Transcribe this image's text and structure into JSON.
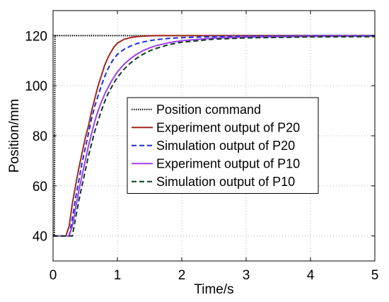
{
  "chart_data": {
    "type": "line",
    "xlabel": "Time/s",
    "ylabel": "Position/mm",
    "xlim": [
      0,
      5
    ],
    "ylim": [
      30,
      130
    ],
    "xticks": [
      0,
      1,
      2,
      3,
      4,
      5
    ],
    "yticks": [
      40,
      60,
      80,
      100,
      120
    ],
    "grid": true,
    "legend_position": "center",
    "series": [
      {
        "name": "Position command",
        "color": "#000000",
        "style": "dotted",
        "x": [
          0,
          0.02,
          0.03,
          5
        ],
        "y": [
          40,
          40,
          120,
          120
        ]
      },
      {
        "name": "Experiment output of P20",
        "color": "#a0281e",
        "style": "solid",
        "x": [
          0,
          0.2,
          0.25,
          0.3,
          0.35,
          0.4,
          0.45,
          0.5,
          0.55,
          0.6,
          0.65,
          0.7,
          0.75,
          0.8,
          0.85,
          0.9,
          0.95,
          1.0,
          1.1,
          1.2,
          1.3,
          1.4,
          1.5,
          1.6,
          1.8,
          2.0,
          2.5,
          3.0,
          4.0,
          5.0
        ],
        "y": [
          40,
          40,
          44,
          53,
          60,
          67,
          73,
          79,
          84,
          90,
          95,
          100,
          104,
          108,
          111,
          113.5,
          115.5,
          117,
          118.5,
          119.2,
          119.6,
          119.8,
          119.9,
          120,
          120,
          120,
          120,
          120,
          120,
          120
        ]
      },
      {
        "name": "Simulation output of P20",
        "color": "#1a2ee0",
        "style": "dashed",
        "x": [
          0,
          0.25,
          0.3,
          0.35,
          0.4,
          0.45,
          0.5,
          0.55,
          0.6,
          0.65,
          0.7,
          0.75,
          0.8,
          0.85,
          0.9,
          0.95,
          1.0,
          1.1,
          1.2,
          1.3,
          1.4,
          1.5,
          1.6,
          1.8,
          2.0,
          2.5,
          3.0,
          4.0,
          5.0
        ],
        "y": [
          40,
          40,
          47,
          55,
          62,
          69,
          75,
          81,
          87,
          92,
          96,
          100,
          103.5,
          106.5,
          109,
          111,
          112.5,
          114.5,
          115.8,
          116.8,
          117.5,
          118,
          118.4,
          118.9,
          119.2,
          119.6,
          119.8,
          120,
          120
        ]
      },
      {
        "name": "Experiment output of P10",
        "color": "#a040ee",
        "style": "solid",
        "x": [
          0,
          0.25,
          0.3,
          0.35,
          0.4,
          0.45,
          0.5,
          0.55,
          0.6,
          0.65,
          0.7,
          0.75,
          0.8,
          0.85,
          0.9,
          0.95,
          1.0,
          1.1,
          1.2,
          1.3,
          1.4,
          1.5,
          1.6,
          1.8,
          2.0,
          2.5,
          3.0,
          4.0,
          5.0
        ],
        "y": [
          40,
          40,
          44,
          51,
          58,
          64,
          70,
          76,
          81,
          86,
          90,
          93.5,
          96.5,
          99,
          101.5,
          103.5,
          105.5,
          108.5,
          110.8,
          112.6,
          114,
          115.1,
          116,
          117.2,
          118,
          119,
          119.4,
          119.7,
          119.8
        ]
      },
      {
        "name": "Simulation output of P10",
        "color": "#0a3b1e",
        "style": "dashed",
        "x": [
          0,
          0.3,
          0.35,
          0.4,
          0.45,
          0.5,
          0.55,
          0.6,
          0.65,
          0.7,
          0.75,
          0.8,
          0.85,
          0.9,
          0.95,
          1.0,
          1.1,
          1.2,
          1.3,
          1.4,
          1.5,
          1.6,
          1.8,
          2.0,
          2.5,
          3.0,
          4.0,
          5.0
        ],
        "y": [
          40,
          40,
          47,
          54,
          60,
          66,
          72,
          77,
          82,
          86,
          90,
          93.5,
          96.5,
          99,
          101.3,
          103.3,
          106.5,
          109,
          111,
          112.6,
          113.9,
          114.9,
          116.4,
          117.4,
          118.6,
          119.1,
          119.5,
          119.6
        ]
      }
    ]
  }
}
